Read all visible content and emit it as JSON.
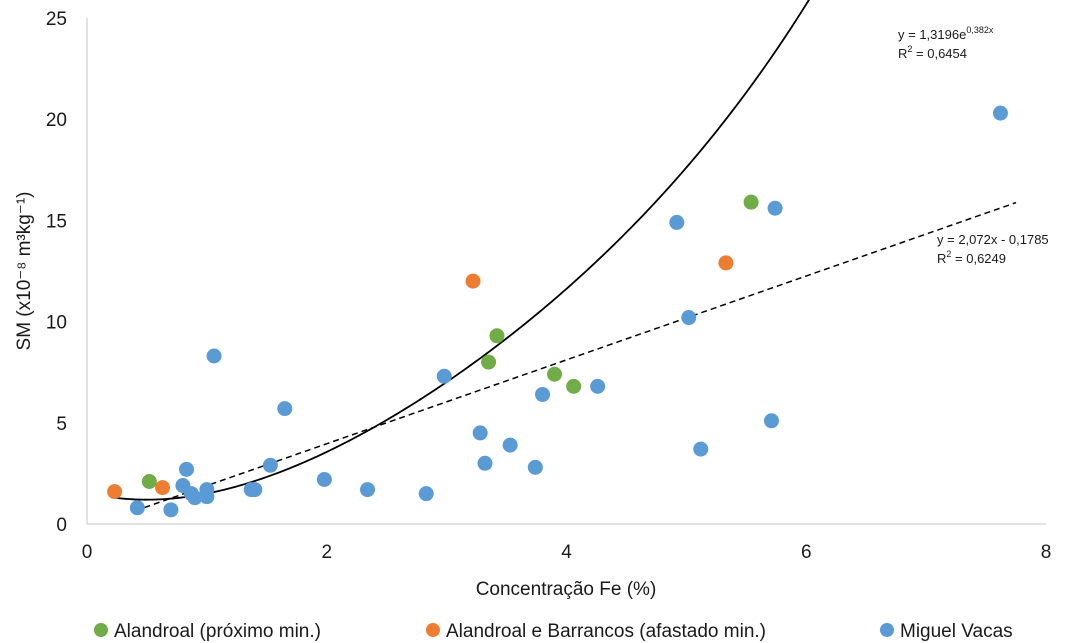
{
  "chart_data": {
    "type": "scatter",
    "xlabel": "Concentração Fe (%)",
    "ylabel": "SM (x10⁻⁸ m³kg⁻¹)",
    "xlim": [
      0,
      8
    ],
    "ylim": [
      0,
      25
    ],
    "xticks": [
      "0",
      "2",
      "4",
      "6",
      "8"
    ],
    "yticks": [
      "0",
      "5",
      "10",
      "15",
      "20",
      "25"
    ],
    "grid": false,
    "legend_position": "bottom",
    "series": [
      {
        "name": "Alandroal (próximo min.)",
        "color": "#70ad47",
        "points": [
          {
            "x": 0.52,
            "y": 2.1
          },
          {
            "x": 3.35,
            "y": 8.0
          },
          {
            "x": 3.42,
            "y": 9.3
          },
          {
            "x": 3.9,
            "y": 7.4
          },
          {
            "x": 4.06,
            "y": 6.8
          },
          {
            "x": 5.54,
            "y": 15.9
          }
        ]
      },
      {
        "name": "Alandroal e Barrancos (afastado min.)",
        "color": "#ed7d31",
        "points": [
          {
            "x": 0.23,
            "y": 1.6
          },
          {
            "x": 0.63,
            "y": 1.8
          },
          {
            "x": 3.22,
            "y": 12.0
          },
          {
            "x": 5.33,
            "y": 12.9
          }
        ]
      },
      {
        "name": "Miguel Vacas",
        "color": "#5b9bd5",
        "points": [
          {
            "x": 0.42,
            "y": 0.8
          },
          {
            "x": 0.7,
            "y": 0.7
          },
          {
            "x": 0.8,
            "y": 1.9
          },
          {
            "x": 0.83,
            "y": 2.7
          },
          {
            "x": 0.87,
            "y": 1.5
          },
          {
            "x": 0.9,
            "y": 1.3
          },
          {
            "x": 1.0,
            "y": 1.7
          },
          {
            "x": 1.0,
            "y": 1.35
          },
          {
            "x": 1.06,
            "y": 8.3
          },
          {
            "x": 1.37,
            "y": 1.7
          },
          {
            "x": 1.4,
            "y": 1.7
          },
          {
            "x": 1.53,
            "y": 2.9
          },
          {
            "x": 1.65,
            "y": 5.7
          },
          {
            "x": 1.98,
            "y": 2.2
          },
          {
            "x": 2.34,
            "y": 1.7
          },
          {
            "x": 2.83,
            "y": 1.5
          },
          {
            "x": 2.98,
            "y": 7.3
          },
          {
            "x": 3.28,
            "y": 4.5
          },
          {
            "x": 3.32,
            "y": 3.0
          },
          {
            "x": 3.53,
            "y": 3.9
          },
          {
            "x": 3.74,
            "y": 2.8
          },
          {
            "x": 3.8,
            "y": 6.4
          },
          {
            "x": 4.26,
            "y": 6.8
          },
          {
            "x": 4.92,
            "y": 14.9
          },
          {
            "x": 5.02,
            "y": 10.2
          },
          {
            "x": 5.12,
            "y": 3.7
          },
          {
            "x": 5.71,
            "y": 5.1
          },
          {
            "x": 5.74,
            "y": 15.6
          },
          {
            "x": 7.62,
            "y": 20.3
          }
        ]
      }
    ],
    "trendlines": [
      {
        "kind": "polynomial",
        "style": "solid",
        "x_range": [
          0.22,
          7.76
        ],
        "label": "y = 1,3196e",
        "label_sup": "0,382x",
        "r2_prefix": "R",
        "r2_sup": "2",
        "r2_rest": " = 0,6454"
      },
      {
        "kind": "linear",
        "style": "dashed",
        "slope": 2.072,
        "intercept": -0.1785,
        "x_range": [
          0.4,
          7.75
        ],
        "label": "y = 2,072x - 0,1785",
        "r2_prefix": "R",
        "r2_sup": "2",
        "r2_rest": " = 0,6249"
      }
    ]
  }
}
